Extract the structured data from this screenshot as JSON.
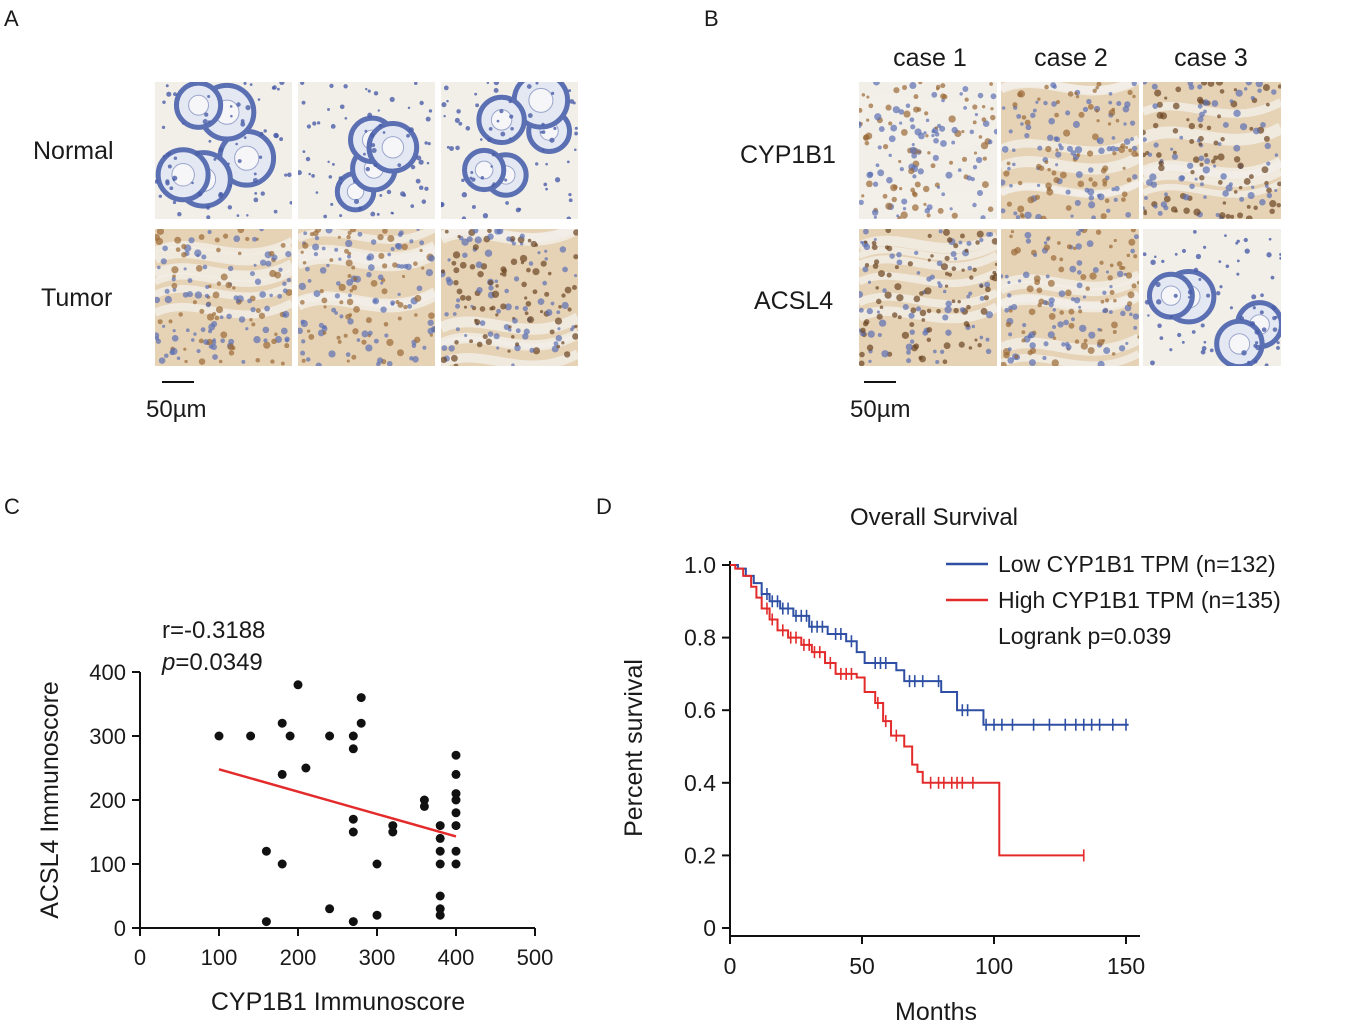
{
  "panelA": {
    "letter": "A",
    "rows": [
      "Normal",
      "Tumor"
    ],
    "scale_label": "50µm"
  },
  "panelB": {
    "letter": "B",
    "cases": [
      "case 1",
      "case 2",
      "case 3"
    ],
    "rows": [
      "CYP1B1",
      "ACSL4"
    ],
    "scale_label": "50µm"
  },
  "panelC": {
    "letter": "C",
    "stat_r": "r=-0.3188",
    "stat_p_italic": "p",
    "stat_p_value": "=0.0349"
  },
  "panelD": {
    "letter": "D",
    "title": "Overall Survival",
    "logrank": "Logrank p=0.039"
  },
  "colors": {
    "low": "#2e4fa3",
    "high": "#e32b2b",
    "fit_line": "#e32b2b",
    "hematoxylin": "#5b6fb3",
    "dab": "#9a6a36"
  },
  "chart_data": [
    {
      "type": "scatter",
      "xlabel": "CYP1B1 Immunoscore",
      "ylabel": "ACSL4 Immunoscore",
      "xlim": [
        0,
        500
      ],
      "ylim": [
        0,
        400
      ],
      "xticks": [
        0,
        100,
        200,
        300,
        400,
        500
      ],
      "yticks": [
        0,
        100,
        200,
        300,
        400
      ],
      "points": [
        [
          100,
          300
        ],
        [
          140,
          300
        ],
        [
          160,
          120
        ],
        [
          160,
          10
        ],
        [
          180,
          320
        ],
        [
          180,
          240
        ],
        [
          180,
          100
        ],
        [
          190,
          300
        ],
        [
          200,
          380
        ],
        [
          210,
          250
        ],
        [
          240,
          300
        ],
        [
          240,
          30
        ],
        [
          270,
          300
        ],
        [
          270,
          280
        ],
        [
          270,
          170
        ],
        [
          270,
          150
        ],
        [
          270,
          10
        ],
        [
          280,
          360
        ],
        [
          280,
          320
        ],
        [
          300,
          100
        ],
        [
          300,
          20
        ],
        [
          320,
          160
        ],
        [
          320,
          150
        ],
        [
          360,
          200
        ],
        [
          360,
          190
        ],
        [
          380,
          160
        ],
        [
          380,
          140
        ],
        [
          380,
          120
        ],
        [
          380,
          100
        ],
        [
          380,
          50
        ],
        [
          380,
          30
        ],
        [
          380,
          20
        ],
        [
          400,
          270
        ],
        [
          400,
          240
        ],
        [
          400,
          210
        ],
        [
          400,
          200
        ],
        [
          400,
          180
        ],
        [
          400,
          160
        ],
        [
          400,
          120
        ],
        [
          400,
          100
        ]
      ],
      "fit": [
        [
          100,
          248
        ],
        [
          400,
          143
        ]
      ],
      "grid": false
    },
    {
      "type": "line",
      "title": "Overall Survival",
      "xlabel": "Months",
      "ylabel": "Percent survival",
      "xlim": [
        0,
        150
      ],
      "ylim": [
        0,
        1.0
      ],
      "xticks": [
        0,
        50,
        100,
        150
      ],
      "yticks": [
        0,
        0.2,
        0.4,
        0.6,
        0.8,
        1.0
      ],
      "ytick_labels": [
        "0",
        "0.2",
        "0.4",
        "0.6",
        "0.8",
        "1.0"
      ],
      "legend_position": "top-right",
      "series": [
        {
          "name": "Low CYP1B1 TPM (n=132)",
          "color": "#2e4fa3",
          "steps": [
            [
              0,
              1.0
            ],
            [
              3,
              0.99
            ],
            [
              6,
              0.97
            ],
            [
              9,
              0.95
            ],
            [
              12,
              0.92
            ],
            [
              15,
              0.9
            ],
            [
              19,
              0.88
            ],
            [
              24,
              0.86
            ],
            [
              30,
              0.83
            ],
            [
              37,
              0.81
            ],
            [
              44,
              0.79
            ],
            [
              48,
              0.76
            ],
            [
              51,
              0.73
            ],
            [
              63,
              0.71
            ],
            [
              66,
              0.68
            ],
            [
              80,
              0.65
            ],
            [
              86,
              0.6
            ],
            [
              96,
              0.56
            ],
            [
              151,
              0.56
            ]
          ],
          "censor": [
            12,
            14,
            16,
            18,
            20,
            22,
            25,
            27,
            29,
            31,
            33,
            35,
            40,
            42,
            46,
            55,
            57,
            59,
            68,
            70,
            73,
            79,
            88,
            90,
            97,
            100,
            103,
            107,
            115,
            121,
            127,
            131,
            134,
            137,
            140,
            145,
            150
          ]
        },
        {
          "name": "High CYP1B1 TPM (n=135)",
          "color": "#e32b2b",
          "steps": [
            [
              0,
              1.0
            ],
            [
              2,
              0.99
            ],
            [
              5,
              0.97
            ],
            [
              8,
              0.94
            ],
            [
              10,
              0.91
            ],
            [
              12,
              0.88
            ],
            [
              15,
              0.85
            ],
            [
              18,
              0.82
            ],
            [
              22,
              0.8
            ],
            [
              27,
              0.78
            ],
            [
              31,
              0.76
            ],
            [
              36,
              0.73
            ],
            [
              40,
              0.7
            ],
            [
              48,
              0.69
            ],
            [
              51,
              0.65
            ],
            [
              55,
              0.62
            ],
            [
              58,
              0.57
            ],
            [
              61,
              0.53
            ],
            [
              66,
              0.5
            ],
            [
              69,
              0.45
            ],
            [
              71,
              0.43
            ],
            [
              73,
              0.4
            ],
            [
              102,
              0.2
            ],
            [
              134,
              0.2
            ]
          ],
          "censor": [
            14,
            16,
            20,
            23,
            25,
            28,
            30,
            32,
            34,
            38,
            42,
            44,
            46,
            56,
            59,
            63,
            76,
            79,
            81,
            84,
            86,
            88,
            92,
            134
          ]
        }
      ]
    }
  ]
}
